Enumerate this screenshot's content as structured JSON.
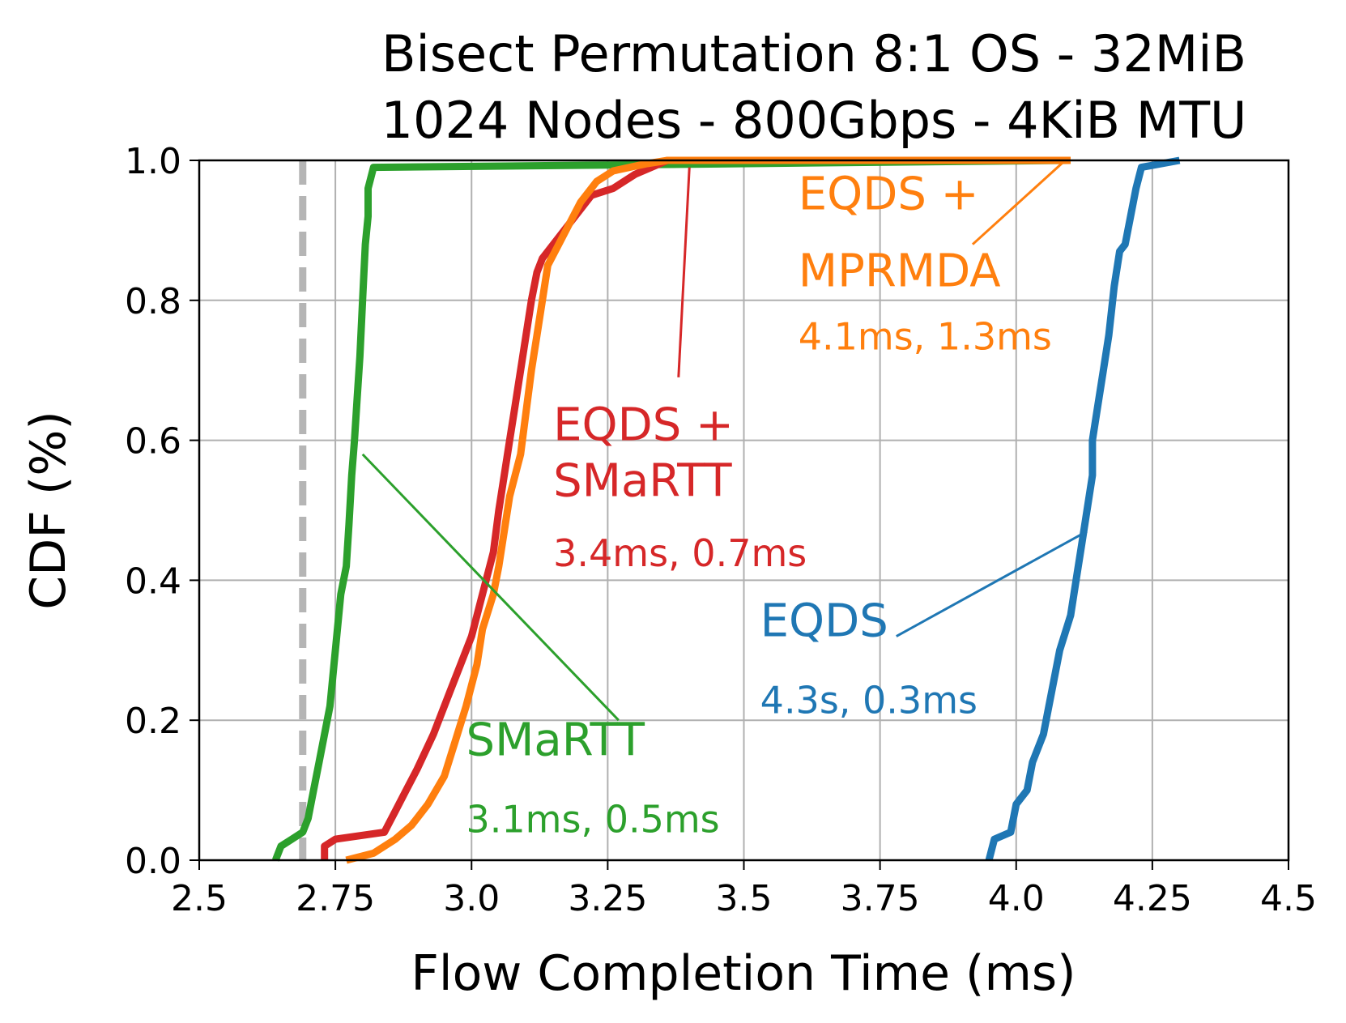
{
  "chart_data": {
    "type": "line",
    "title": "Bisect Permutation 8:1 OS - 32MiB",
    "subtitle": "1024 Nodes - 800Gbps - 4KiB MTU",
    "xlabel": "Flow Completion Time (ms)",
    "ylabel": "CDF (%)",
    "xlim": [
      2.5,
      4.5
    ],
    "ylim": [
      0.0,
      1.0
    ],
    "xticks": [
      "2.5",
      "2.75",
      "3.0",
      "3.25",
      "3.5",
      "3.75",
      "4.0",
      "4.25",
      "4.5"
    ],
    "yticks": [
      "0.0",
      "0.2",
      "0.4",
      "0.6",
      "0.8",
      "1.0"
    ],
    "grid": true,
    "reference_line": {
      "x": 2.69,
      "style": "dashed",
      "color": "#b5b5b5"
    },
    "series": [
      {
        "key": "smartt",
        "color": "#2ca02c",
        "x": [
          2.64,
          2.65,
          2.67,
          2.69,
          2.7,
          2.71,
          2.72,
          2.73,
          2.74,
          2.75,
          2.76,
          2.77,
          2.775,
          2.78,
          2.785,
          2.79,
          2.795,
          2.8,
          2.805,
          2.81,
          2.81,
          2.82,
          4.1
        ],
        "y": [
          0.0,
          0.02,
          0.03,
          0.04,
          0.06,
          0.1,
          0.14,
          0.18,
          0.22,
          0.3,
          0.38,
          0.42,
          0.48,
          0.55,
          0.6,
          0.66,
          0.72,
          0.8,
          0.88,
          0.92,
          0.96,
          0.99,
          1.0
        ]
      },
      {
        "key": "eqds_smartt",
        "color": "#d62728",
        "x": [
          2.73,
          2.73,
          2.75,
          2.84,
          2.86,
          2.88,
          2.9,
          2.93,
          2.96,
          2.98,
          3.0,
          3.02,
          3.04,
          3.05,
          3.06,
          3.07,
          3.08,
          3.09,
          3.1,
          3.11,
          3.12,
          3.13,
          3.15,
          3.17,
          3.2,
          3.22,
          3.26,
          3.3,
          3.33,
          3.36,
          3.4
        ],
        "y": [
          0.0,
          0.02,
          0.03,
          0.04,
          0.07,
          0.1,
          0.13,
          0.18,
          0.24,
          0.28,
          0.32,
          0.38,
          0.44,
          0.5,
          0.55,
          0.6,
          0.65,
          0.7,
          0.75,
          0.8,
          0.84,
          0.86,
          0.88,
          0.9,
          0.93,
          0.95,
          0.96,
          0.98,
          0.99,
          1.0,
          1.0
        ]
      },
      {
        "key": "eqds_mprmda",
        "color": "#ff7f0e",
        "x": [
          2.77,
          2.82,
          2.86,
          2.89,
          2.92,
          2.95,
          2.97,
          2.99,
          3.01,
          3.02,
          3.04,
          3.05,
          3.06,
          3.07,
          3.09,
          3.1,
          3.11,
          3.12,
          3.13,
          3.14,
          3.16,
          3.18,
          3.2,
          3.23,
          3.26,
          3.29,
          3.32,
          3.36,
          3.42,
          4.1
        ],
        "y": [
          0.0,
          0.01,
          0.03,
          0.05,
          0.08,
          0.12,
          0.17,
          0.22,
          0.28,
          0.33,
          0.38,
          0.42,
          0.47,
          0.52,
          0.58,
          0.64,
          0.7,
          0.75,
          0.8,
          0.85,
          0.88,
          0.91,
          0.94,
          0.97,
          0.985,
          0.99,
          0.995,
          1.0,
          1.0,
          1.0
        ]
      },
      {
        "key": "eqds",
        "color": "#1f77b4",
        "x": [
          3.95,
          3.96,
          3.99,
          4.0,
          4.02,
          4.03,
          4.05,
          4.06,
          4.07,
          4.08,
          4.1,
          4.11,
          4.12,
          4.13,
          4.14,
          4.14,
          4.15,
          4.16,
          4.17,
          4.18,
          4.19,
          4.2,
          4.21,
          4.22,
          4.23,
          4.3
        ],
        "y": [
          0.0,
          0.03,
          0.04,
          0.08,
          0.1,
          0.14,
          0.18,
          0.22,
          0.26,
          0.3,
          0.35,
          0.4,
          0.45,
          0.5,
          0.55,
          0.6,
          0.65,
          0.7,
          0.75,
          0.82,
          0.87,
          0.88,
          0.92,
          0.96,
          0.99,
          1.0
        ]
      }
    ],
    "annotations": [
      {
        "key": "smartt",
        "name": "SMaRTT",
        "stat": "3.1ms, 0.5ms",
        "color": "#2ca02c",
        "text_at": [
          2.99,
          0.15
        ],
        "stat_at": [
          2.99,
          0.04
        ],
        "pointer_from": [
          3.27,
          0.2
        ],
        "pointer_to": [
          2.8,
          0.58
        ]
      },
      {
        "key": "eqds_smartt",
        "name": "EQDS +",
        "name2": "SMaRTT",
        "stat": "3.4ms, 0.7ms",
        "color": "#d62728",
        "text_at": [
          3.15,
          0.6
        ],
        "text2_at": [
          3.15,
          0.52
        ],
        "stat_at": [
          3.15,
          0.42
        ],
        "pointer_from": [
          3.38,
          0.69
        ],
        "pointer_to": [
          3.4,
          0.99
        ]
      },
      {
        "key": "eqds_mprmda",
        "name": "EQDS +",
        "name2": "MPRMDA",
        "stat": "4.1ms, 1.3ms",
        "color": "#ff7f0e",
        "text_at": [
          3.6,
          0.93
        ],
        "text2_at": [
          3.6,
          0.82
        ],
        "stat_at": [
          3.6,
          0.73
        ],
        "pointer_from": [
          3.92,
          0.88
        ],
        "pointer_to": [
          4.09,
          1.0
        ]
      },
      {
        "key": "eqds",
        "name": "EQDS",
        "stat": "4.3s, 0.3ms",
        "color": "#1f77b4",
        "text_at": [
          3.53,
          0.32
        ],
        "stat_at": [
          3.53,
          0.21
        ],
        "pointer_from": [
          3.78,
          0.32
        ],
        "pointer_to": [
          4.13,
          0.47
        ]
      }
    ]
  }
}
